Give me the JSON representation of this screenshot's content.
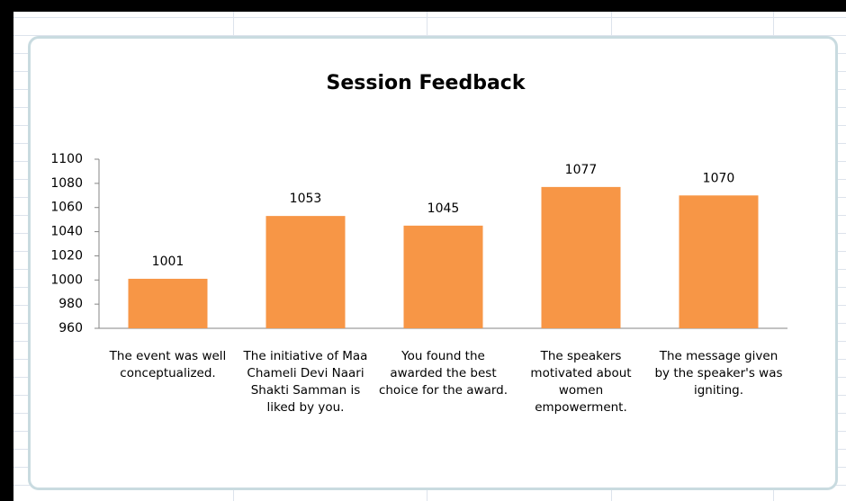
{
  "chart_data": {
    "type": "bar",
    "title": "Session Feedback",
    "categories": [
      "The event was well conceptualized.",
      "The initiative of Maa Chameli Devi Naari Shakti Samman is liked by you.",
      "You found the awarded the best choice for the award.",
      "The speakers motivated about women empowerment.",
      "The message given by the speaker's was igniting."
    ],
    "values": [
      1001,
      1053,
      1045,
      1077,
      1070
    ],
    "color": "#f79646",
    "ylim": [
      960,
      1100
    ],
    "yticks": [
      960,
      980,
      1000,
      1020,
      1040,
      1060,
      1080,
      1100
    ],
    "grid": false
  }
}
